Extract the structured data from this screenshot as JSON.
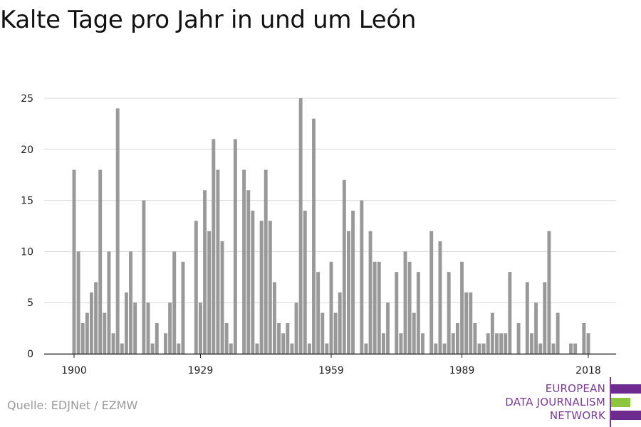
{
  "title": "Kalte Tage pro Jahr in und um León",
  "source": "Quelle: EDJNet / EZMW",
  "logo": {
    "lines": [
      "EUROPEAN",
      "DATA JOURNALISM",
      "NETWORK"
    ],
    "colors": {
      "purple": "#6e2a8e",
      "green": "#8cc63f"
    }
  },
  "colors": {
    "bar": "#999999",
    "grid": "#d9d9d9",
    "axis": "#222222"
  },
  "chart_data": {
    "type": "bar",
    "title": "Kalte Tage pro Jahr in und um León",
    "xlabel": "",
    "ylabel": "",
    "ylim": [
      0,
      25
    ],
    "yticks": [
      0,
      5,
      10,
      15,
      20,
      25
    ],
    "xticks": [
      1900,
      1929,
      1959,
      1989,
      2018
    ],
    "xlim": [
      1900,
      2018
    ],
    "grid": true,
    "x": [
      1900,
      1901,
      1902,
      1903,
      1904,
      1905,
      1906,
      1907,
      1908,
      1909,
      1910,
      1911,
      1912,
      1913,
      1914,
      1915,
      1916,
      1917,
      1918,
      1919,
      1920,
      1921,
      1922,
      1923,
      1924,
      1925,
      1926,
      1927,
      1928,
      1929,
      1930,
      1931,
      1932,
      1933,
      1934,
      1935,
      1936,
      1937,
      1938,
      1939,
      1940,
      1941,
      1942,
      1943,
      1944,
      1945,
      1946,
      1947,
      1948,
      1949,
      1950,
      1951,
      1952,
      1953,
      1954,
      1955,
      1956,
      1957,
      1958,
      1959,
      1960,
      1961,
      1962,
      1963,
      1964,
      1965,
      1966,
      1967,
      1968,
      1969,
      1970,
      1971,
      1972,
      1973,
      1974,
      1975,
      1976,
      1977,
      1978,
      1979,
      1980,
      1981,
      1982,
      1983,
      1984,
      1985,
      1986,
      1987,
      1988,
      1989,
      1990,
      1991,
      1992,
      1993,
      1994,
      1995,
      1996,
      1997,
      1998,
      1999,
      2000,
      2001,
      2002,
      2003,
      2004,
      2005,
      2006,
      2007,
      2008,
      2009,
      2010,
      2011,
      2012,
      2013,
      2014,
      2015,
      2016,
      2017,
      2018
    ],
    "values": [
      18,
      10,
      3,
      4,
      6,
      7,
      18,
      4,
      10,
      2,
      24,
      1,
      6,
      10,
      5,
      0,
      15,
      5,
      1,
      3,
      0,
      2,
      5,
      10,
      1,
      9,
      0,
      0,
      13,
      5,
      16,
      12,
      21,
      18,
      11,
      3,
      1,
      21,
      0,
      18,
      16,
      14,
      1,
      13,
      18,
      13,
      7,
      3,
      2,
      3,
      1,
      5,
      25,
      14,
      1,
      23,
      8,
      4,
      1,
      9,
      4,
      6,
      17,
      12,
      14,
      0,
      15,
      1,
      12,
      9,
      9,
      2,
      5,
      0,
      8,
      2,
      10,
      9,
      4,
      8,
      2,
      0,
      12,
      1,
      11,
      1,
      8,
      2,
      3,
      9,
      6,
      6,
      3,
      1,
      1,
      2,
      4,
      2,
      2,
      2,
      8,
      0,
      3,
      0,
      7,
      2,
      5,
      1,
      7,
      12,
      1,
      4,
      0,
      0,
      1,
      1,
      0,
      3,
      2
    ]
  }
}
